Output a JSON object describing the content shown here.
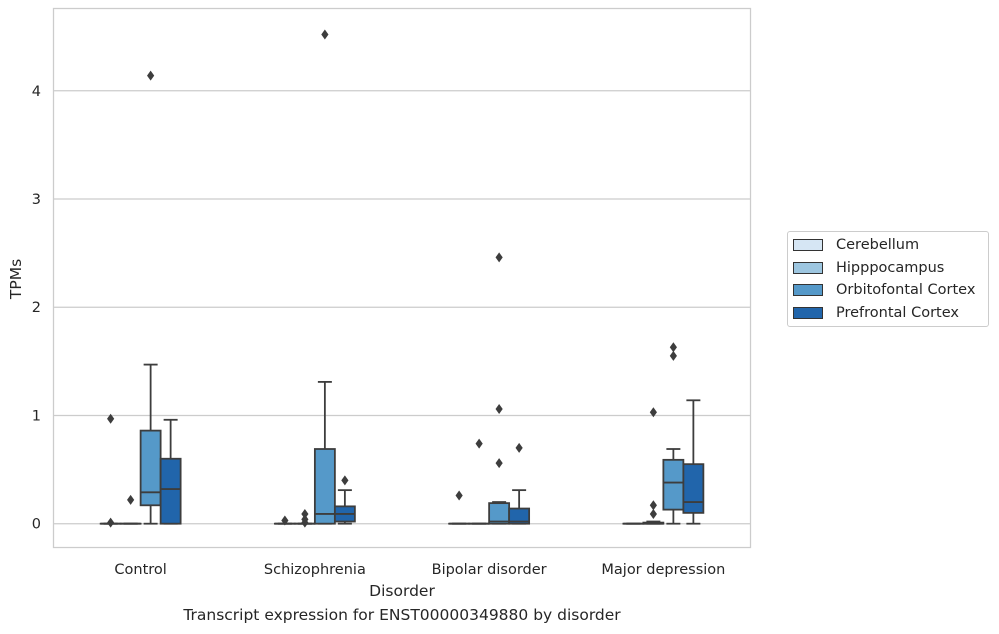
{
  "figure": {
    "caption": "Transcript expression for ENST00000349880 by disorder"
  },
  "legend": {
    "items": [
      {
        "label": "Cerebellum",
        "color": "#d6e6f4"
      },
      {
        "label": "Hipppocampus",
        "color": "#9dc6e0"
      },
      {
        "label": "Orbitofontal Cortex",
        "color": "#5599c9"
      },
      {
        "label": "Prefrontal Cortex",
        "color": "#2165ab"
      }
    ]
  },
  "chart_data": {
    "type": "boxplot",
    "xlabel": "Disorder",
    "ylabel": "TPMs",
    "ylim": [
      -0.22,
      4.76
    ],
    "yticks": [
      0,
      1,
      2,
      3,
      4
    ],
    "grid": "horizontal",
    "legend_position": "right",
    "categories": [
      "Control",
      "Schizophrenia",
      "Bipolar disorder",
      "Major depression"
    ],
    "series": [
      {
        "name": "Cerebellum",
        "color": "#d6e6f4",
        "boxes": [
          {
            "whislo": 0,
            "q1": 0,
            "med": 0,
            "q3": 0,
            "whishi": 0,
            "fliers": [
              0.97,
              0.01
            ]
          },
          {
            "whislo": 0,
            "q1": 0,
            "med": 0,
            "q3": 0,
            "whishi": 0,
            "fliers": [
              0.03
            ]
          },
          {
            "whislo": 0,
            "q1": 0,
            "med": 0,
            "q3": 0,
            "whishi": 0,
            "fliers": [
              0.26
            ]
          },
          {
            "whislo": 0,
            "q1": 0,
            "med": 0,
            "q3": 0,
            "whishi": 0,
            "fliers": []
          }
        ]
      },
      {
        "name": "Hipppocampus",
        "color": "#9dc6e0",
        "boxes": [
          {
            "whislo": 0,
            "q1": 0,
            "med": 0,
            "q3": 0,
            "whishi": 0,
            "fliers": [
              0.22
            ]
          },
          {
            "whislo": 0,
            "q1": 0,
            "med": 0,
            "q3": 0,
            "whishi": 0,
            "fliers": [
              0.09,
              0.04,
              0.01
            ]
          },
          {
            "whislo": 0,
            "q1": 0,
            "med": 0,
            "q3": 0,
            "whishi": 0,
            "fliers": [
              0.74
            ]
          },
          {
            "whislo": 0,
            "q1": 0,
            "med": 0,
            "q3": 0.01,
            "whishi": 0.02,
            "fliers": [
              1.03,
              0.17,
              0.09
            ]
          }
        ]
      },
      {
        "name": "Orbitofontal Cortex",
        "color": "#5599c9",
        "boxes": [
          {
            "whislo": 0,
            "q1": 0.17,
            "med": 0.29,
            "q3": 0.86,
            "whishi": 1.47,
            "fliers": [
              4.14
            ]
          },
          {
            "whislo": 0,
            "q1": 0,
            "med": 0.09,
            "q3": 0.69,
            "whishi": 1.31,
            "fliers": [
              4.52
            ]
          },
          {
            "whislo": 0,
            "q1": 0,
            "med": 0.02,
            "q3": 0.19,
            "whishi": 0.2,
            "fliers": [
              2.46,
              1.06,
              0.56
            ]
          },
          {
            "whislo": 0,
            "q1": 0.13,
            "med": 0.38,
            "q3": 0.59,
            "whishi": 0.69,
            "fliers": [
              1.63,
              1.55
            ]
          }
        ]
      },
      {
        "name": "Prefrontal Cortex",
        "color": "#2165ab",
        "boxes": [
          {
            "whislo": 0,
            "q1": 0,
            "med": 0.32,
            "q3": 0.6,
            "whishi": 0.96,
            "fliers": []
          },
          {
            "whislo": 0,
            "q1": 0.02,
            "med": 0.09,
            "q3": 0.16,
            "whishi": 0.31,
            "fliers": [
              0.4
            ]
          },
          {
            "whislo": 0,
            "q1": 0,
            "med": 0.02,
            "q3": 0.14,
            "whishi": 0.31,
            "fliers": [
              0.7
            ]
          },
          {
            "whislo": 0,
            "q1": 0.1,
            "med": 0.2,
            "q3": 0.55,
            "whishi": 1.14,
            "fliers": []
          }
        ]
      }
    ]
  }
}
